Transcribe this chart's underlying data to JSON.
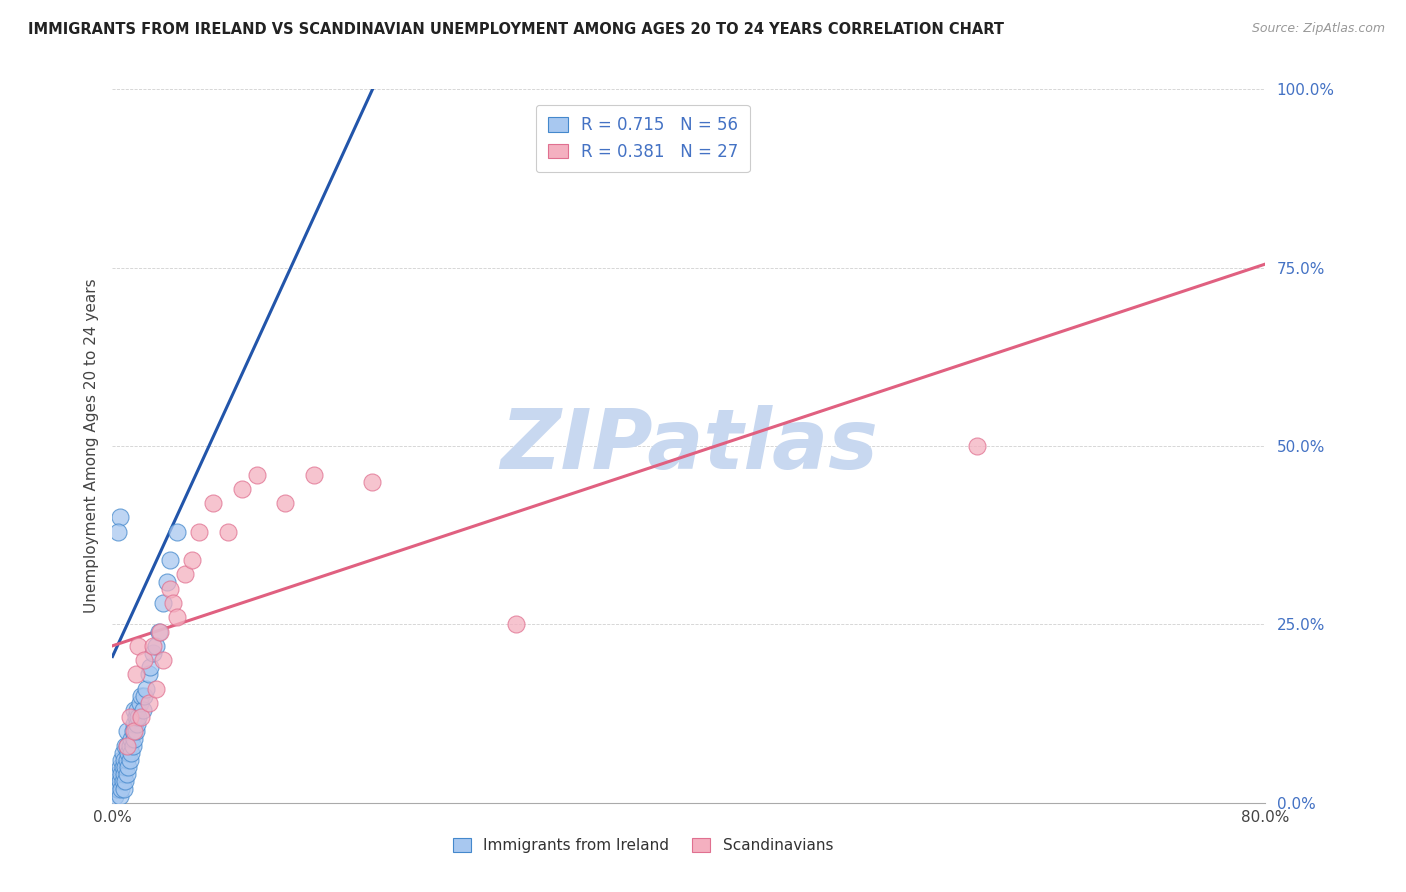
{
  "title": "IMMIGRANTS FROM IRELAND VS SCANDINAVIAN UNEMPLOYMENT AMONG AGES 20 TO 24 YEARS CORRELATION CHART",
  "source": "Source: ZipAtlas.com",
  "ylabel": "Unemployment Among Ages 20 to 24 years",
  "xlabel_blue": "Immigrants from Ireland",
  "xlabel_pink": "Scandinavians",
  "xlim": [
    0.0,
    0.8
  ],
  "ylim": [
    0.0,
    1.0
  ],
  "xtick_positions": [
    0.0,
    0.1,
    0.2,
    0.3,
    0.4,
    0.5,
    0.6,
    0.7,
    0.8
  ],
  "xtick_labels": [
    "0.0%",
    "",
    "",
    "",
    "",
    "",
    "",
    "",
    "80.0%"
  ],
  "ytick_labels": [
    "0.0%",
    "25.0%",
    "50.0%",
    "75.0%",
    "100.0%"
  ],
  "yticks": [
    0.0,
    0.25,
    0.5,
    0.75,
    1.0
  ],
  "blue_R": 0.715,
  "blue_N": 56,
  "pink_R": 0.381,
  "pink_N": 27,
  "blue_color": "#A8C8F0",
  "pink_color": "#F4B0C0",
  "blue_edge_color": "#4488CC",
  "pink_edge_color": "#E07090",
  "blue_line_color": "#2255AA",
  "pink_line_color": "#E06080",
  "watermark": "ZIPatlas",
  "watermark_color": "#C8D8F0",
  "background_color": "#FFFFFF",
  "title_fontsize": 10.5,
  "source_fontsize": 9,
  "blue_line": {
    "x0": 0.0,
    "x1": 0.185,
    "y0": 0.205,
    "y1": 1.02
  },
  "pink_line": {
    "x0": 0.0,
    "x1": 0.8,
    "y0": 0.22,
    "y1": 0.755
  },
  "blue_scatter_x": [
    0.002,
    0.003,
    0.003,
    0.004,
    0.004,
    0.005,
    0.005,
    0.005,
    0.006,
    0.006,
    0.006,
    0.007,
    0.007,
    0.007,
    0.008,
    0.008,
    0.008,
    0.009,
    0.009,
    0.009,
    0.01,
    0.01,
    0.01,
    0.01,
    0.011,
    0.011,
    0.012,
    0.012,
    0.013,
    0.013,
    0.014,
    0.014,
    0.015,
    0.015,
    0.015,
    0.016,
    0.016,
    0.017,
    0.017,
    0.018,
    0.019,
    0.02,
    0.021,
    0.022,
    0.023,
    0.025,
    0.026,
    0.028,
    0.03,
    0.032,
    0.035,
    0.038,
    0.04,
    0.045,
    0.005,
    0.004
  ],
  "blue_scatter_y": [
    0.01,
    0.02,
    0.03,
    0.02,
    0.04,
    0.01,
    0.03,
    0.05,
    0.02,
    0.04,
    0.06,
    0.03,
    0.05,
    0.07,
    0.02,
    0.04,
    0.06,
    0.03,
    0.05,
    0.08,
    0.04,
    0.06,
    0.08,
    0.1,
    0.05,
    0.07,
    0.06,
    0.08,
    0.07,
    0.09,
    0.08,
    0.1,
    0.09,
    0.11,
    0.13,
    0.1,
    0.12,
    0.11,
    0.13,
    0.12,
    0.14,
    0.15,
    0.13,
    0.15,
    0.16,
    0.18,
    0.19,
    0.21,
    0.22,
    0.24,
    0.28,
    0.31,
    0.34,
    0.38,
    0.4,
    0.38
  ],
  "pink_scatter_x": [
    0.01,
    0.012,
    0.015,
    0.016,
    0.018,
    0.02,
    0.022,
    0.025,
    0.028,
    0.03,
    0.033,
    0.035,
    0.04,
    0.042,
    0.045,
    0.05,
    0.055,
    0.06,
    0.07,
    0.08,
    0.09,
    0.1,
    0.12,
    0.14,
    0.18,
    0.28,
    0.6
  ],
  "pink_scatter_y": [
    0.08,
    0.12,
    0.1,
    0.18,
    0.22,
    0.12,
    0.2,
    0.14,
    0.22,
    0.16,
    0.24,
    0.2,
    0.3,
    0.28,
    0.26,
    0.32,
    0.34,
    0.38,
    0.42,
    0.38,
    0.44,
    0.46,
    0.42,
    0.46,
    0.45,
    0.25,
    0.5
  ]
}
